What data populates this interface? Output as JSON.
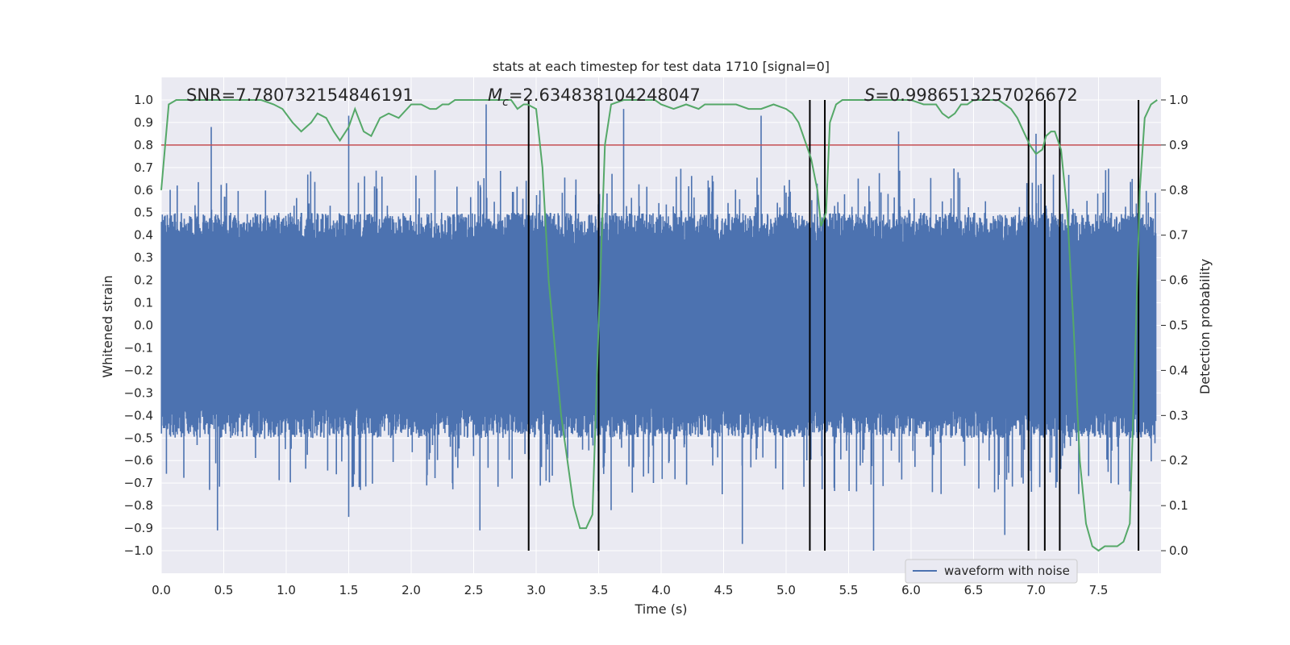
{
  "chart_data": {
    "type": "line",
    "title": "stats at each timestep for test data 1710 [signal=0]",
    "xlabel": "Time (s)",
    "ylabel_left": "Whitened strain",
    "ylabel_right": "Detection probability",
    "xlim": [
      0,
      8
    ],
    "ylim_left": [
      -1.1,
      1.1
    ],
    "ylim_right": [
      -0.05,
      1.05
    ],
    "x_ticks": [
      "0.0",
      "0.5",
      "1.0",
      "1.5",
      "2.0",
      "2.5",
      "3.0",
      "3.5",
      "4.0",
      "4.5",
      "5.0",
      "5.5",
      "6.0",
      "6.5",
      "7.0",
      "7.5"
    ],
    "y_left_ticks": [
      "1.0",
      "0.9",
      "0.8",
      "0.7",
      "0.6",
      "0.5",
      "0.4",
      "0.3",
      "0.2",
      "0.1",
      "0.0",
      "-0.1",
      "-0.2",
      "-0.3",
      "-0.4",
      "-0.5",
      "-0.6",
      "-0.7",
      "-0.8",
      "-0.9",
      "-1.0"
    ],
    "y_right_ticks": [
      "1.0",
      "0.9",
      "0.8",
      "0.7",
      "0.6",
      "0.5",
      "0.4",
      "0.3",
      "0.2",
      "0.1",
      "0.0"
    ],
    "annotations": {
      "snr": "SNR=7.780732154846191",
      "mc_symbol": "M",
      "mc_sub": "c",
      "mc_value": "=2.634838104248047",
      "s_symbol": "S",
      "s_value": "=0.9986513257026672"
    },
    "legend": {
      "label": "waveform with noise",
      "position": "lower-right"
    },
    "threshold_right": 0.9,
    "event_lines_x": [
      2.94,
      3.5,
      5.19,
      5.31,
      6.94,
      7.07,
      7.19,
      7.82
    ],
    "waveform": {
      "name": "waveform with noise",
      "envelope_typical": 0.4,
      "peak_upper": [
        0.88,
        0.93,
        0.98,
        0.96,
        0.93,
        0.86,
        0.85
      ],
      "peak_lower": [
        -0.91,
        -0.85,
        -0.91,
        -0.82,
        -0.97,
        -1.0,
        -0.93
      ]
    },
    "detection_probability": {
      "x": [
        0.0,
        0.06,
        0.12,
        0.2,
        0.3,
        0.4,
        0.5,
        0.6,
        0.7,
        0.8,
        0.9,
        0.97,
        1.05,
        1.12,
        1.2,
        1.25,
        1.32,
        1.38,
        1.43,
        1.5,
        1.55,
        1.62,
        1.68,
        1.75,
        1.82,
        1.9,
        2.0,
        2.08,
        2.15,
        2.2,
        2.25,
        2.3,
        2.35,
        2.4,
        2.5,
        2.6,
        2.7,
        2.8,
        2.85,
        2.9,
        2.93,
        3.0,
        3.05,
        3.1,
        3.2,
        3.3,
        3.35,
        3.4,
        3.45,
        3.5,
        3.55,
        3.6,
        3.7,
        3.8,
        3.9,
        3.95,
        4.0,
        4.1,
        4.2,
        4.3,
        4.35,
        4.4,
        4.5,
        4.6,
        4.7,
        4.8,
        4.9,
        5.0,
        5.05,
        5.1,
        5.15,
        5.2,
        5.25,
        5.28,
        5.32,
        5.35,
        5.4,
        5.45,
        5.5,
        5.6,
        5.7,
        5.8,
        5.9,
        6.0,
        6.1,
        6.2,
        6.25,
        6.3,
        6.35,
        6.4,
        6.45,
        6.5,
        6.6,
        6.7,
        6.75,
        6.8,
        6.85,
        6.9,
        6.95,
        7.0,
        7.05,
        7.08,
        7.12,
        7.15,
        7.2,
        7.25,
        7.3,
        7.35,
        7.4,
        7.45,
        7.5,
        7.55,
        7.6,
        7.65,
        7.7,
        7.75,
        7.8,
        7.83,
        7.87,
        7.92,
        7.97
      ],
      "y": [
        0.8,
        0.99,
        1.0,
        1.0,
        1.0,
        1.0,
        1.0,
        1.0,
        1.0,
        1.0,
        0.99,
        0.98,
        0.95,
        0.93,
        0.95,
        0.97,
        0.96,
        0.93,
        0.91,
        0.94,
        0.98,
        0.93,
        0.92,
        0.96,
        0.97,
        0.96,
        0.99,
        0.99,
        0.98,
        0.98,
        0.99,
        0.99,
        1.0,
        1.0,
        1.0,
        1.0,
        1.0,
        1.0,
        0.98,
        0.99,
        0.99,
        0.98,
        0.85,
        0.6,
        0.3,
        0.1,
        0.05,
        0.05,
        0.08,
        0.5,
        0.9,
        0.99,
        1.0,
        1.0,
        1.0,
        1.0,
        0.99,
        0.98,
        0.99,
        0.98,
        0.99,
        0.99,
        0.99,
        0.99,
        0.98,
        0.98,
        0.99,
        0.98,
        0.97,
        0.95,
        0.91,
        0.87,
        0.8,
        0.72,
        0.75,
        0.95,
        0.99,
        1.0,
        1.0,
        1.0,
        1.0,
        1.0,
        1.0,
        1.0,
        0.99,
        0.99,
        0.97,
        0.96,
        0.97,
        0.99,
        0.99,
        1.0,
        1.0,
        1.0,
        0.99,
        0.98,
        0.96,
        0.93,
        0.9,
        0.88,
        0.89,
        0.92,
        0.93,
        0.93,
        0.89,
        0.75,
        0.5,
        0.2,
        0.06,
        0.01,
        0.0,
        0.01,
        0.01,
        0.01,
        0.02,
        0.06,
        0.5,
        0.8,
        0.96,
        0.99,
        1.0
      ]
    },
    "colors": {
      "waveform": "#4c72b0",
      "probability": "#55a868",
      "threshold": "#c44e52",
      "event_lines": "#000000",
      "plot_bg": "#eaeaf2",
      "grid": "#ffffff"
    }
  }
}
